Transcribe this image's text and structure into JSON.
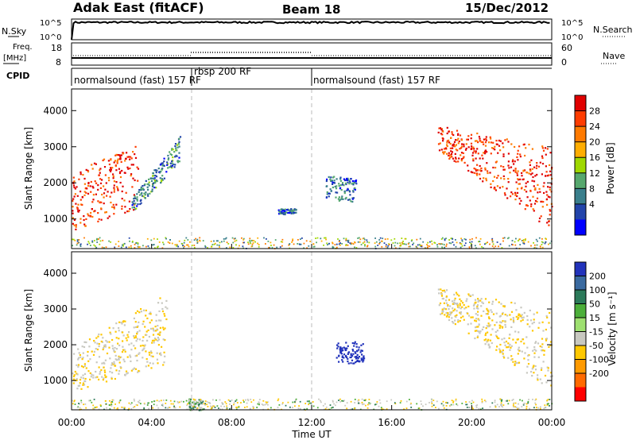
{
  "header": {
    "station": "Adak East (fitACF)",
    "beam": "Beam 18",
    "date": "15/Dec/2012"
  },
  "noise_panel": {
    "left_label": "N.Sky",
    "right_label": "N.Search",
    "left_ticks": [
      "10^5",
      "10^0"
    ],
    "right_ticks": [
      "10^5",
      "10^0"
    ]
  },
  "freq_panel": {
    "left_label_line1": "Freq.",
    "left_label_line2": "[MHz]",
    "right_label": "Nave",
    "left_ticks": [
      "18",
      "8"
    ],
    "right_ticks": [
      "60",
      "0"
    ]
  },
  "cpid_panel": {
    "label": "CPID",
    "segments": [
      {
        "start_hour": 0,
        "end_hour": 6,
        "label": "normalsound (fast) 157 RF"
      },
      {
        "start_hour": 6,
        "end_hour": 12,
        "label": "rbsp 200 RF"
      },
      {
        "start_hour": 12,
        "end_hour": 24,
        "label": "normalsound (fast) 157 RF"
      }
    ]
  },
  "power_panel": {
    "ylabel": "Slant Range [km]",
    "colorbar_label": "Power [dB]",
    "colorbar_ticks": [
      "28",
      "24",
      "20",
      "16",
      "12",
      "8",
      "4"
    ],
    "colorbar_colors": [
      "#e00000",
      "#ff3c00",
      "#ff7a00",
      "#ffad00",
      "#9fd800",
      "#56a86e",
      "#3a7f8c",
      "#2244aa",
      "#0000ff"
    ]
  },
  "velocity_panel": {
    "ylabel": "Slant Range [km]",
    "colorbar_label": "Velocity [m s⁻¹]",
    "colorbar_ticks": [
      "200",
      "100",
      "50",
      "15",
      "-15",
      "-50",
      "-100",
      "-200"
    ],
    "colorbar_colors": [
      "#2233bb",
      "#3a6aa0",
      "#2c7a5a",
      "#4caf3a",
      "#9ee070",
      "#c8c8c0",
      "#ffc800",
      "#ff9a00",
      "#ff6a00",
      "#ff0000"
    ]
  },
  "xaxis": {
    "label": "Time UT",
    "ticks": [
      "00:00",
      "04:00",
      "08:00",
      "12:00",
      "16:00",
      "20:00",
      "00:00"
    ]
  },
  "yaxis": {
    "ticks": [
      "4000",
      "3000",
      "2000",
      "1000"
    ]
  },
  "chart_data": {
    "type": "heatmap",
    "title": "Adak East (fitACF) Beam 18 15/Dec/2012",
    "xlabel": "Time UT",
    "ylabel": "Slant Range [km]",
    "xlim_hours": [
      0,
      24
    ],
    "ylim_km": [
      180,
      4600
    ],
    "noise_level_log10": 4.2,
    "frequency_mhz": 10.5,
    "nave": 20,
    "power_echo_regions": [
      {
        "t0": 0.0,
        "t1": 3.3,
        "r_low0": 700,
        "r_low1": 1300,
        "r_high0": 2300,
        "r_high1": 3100,
        "dominant_db": 28
      },
      {
        "t0": 3.0,
        "t1": 5.4,
        "r_low0": 1200,
        "r_low1": 2600,
        "r_high0": 1600,
        "r_high1": 3300,
        "dominant_db": 8
      },
      {
        "t0": 10.3,
        "t1": 11.2,
        "r_low0": 1150,
        "r_low1": 1150,
        "r_high0": 1300,
        "r_high1": 1300,
        "dominant_db": 6
      },
      {
        "t0": 12.7,
        "t1": 14.2,
        "r_low0": 1500,
        "r_low1": 1500,
        "r_high0": 2200,
        "r_high1": 2200,
        "dominant_db": 6
      },
      {
        "t0": 18.3,
        "t1": 24.0,
        "r_low0": 2900,
        "r_low1": 700,
        "r_high0": 3600,
        "r_high1": 3000,
        "dominant_db": 28
      }
    ],
    "velocity_echo_regions": [
      {
        "t0": 0.0,
        "t1": 4.8,
        "r_low0": 700,
        "r_low1": 1500,
        "r_high0": 1900,
        "r_high1": 3500,
        "dominant_velocity": -15
      },
      {
        "t0": 5.8,
        "t1": 6.6,
        "r_low0": 180,
        "r_low1": 180,
        "r_high0": 500,
        "r_high1": 500,
        "dominant_velocity": 15
      },
      {
        "t0": 13.2,
        "t1": 14.6,
        "r_low0": 1500,
        "r_low1": 1500,
        "r_high0": 2100,
        "r_high1": 2100,
        "dominant_velocity": 200
      },
      {
        "t0": 18.3,
        "t1": 24.0,
        "r_low0": 2900,
        "r_low1": 700,
        "r_high0": 3600,
        "r_high1": 3000,
        "dominant_velocity": -15
      }
    ]
  }
}
